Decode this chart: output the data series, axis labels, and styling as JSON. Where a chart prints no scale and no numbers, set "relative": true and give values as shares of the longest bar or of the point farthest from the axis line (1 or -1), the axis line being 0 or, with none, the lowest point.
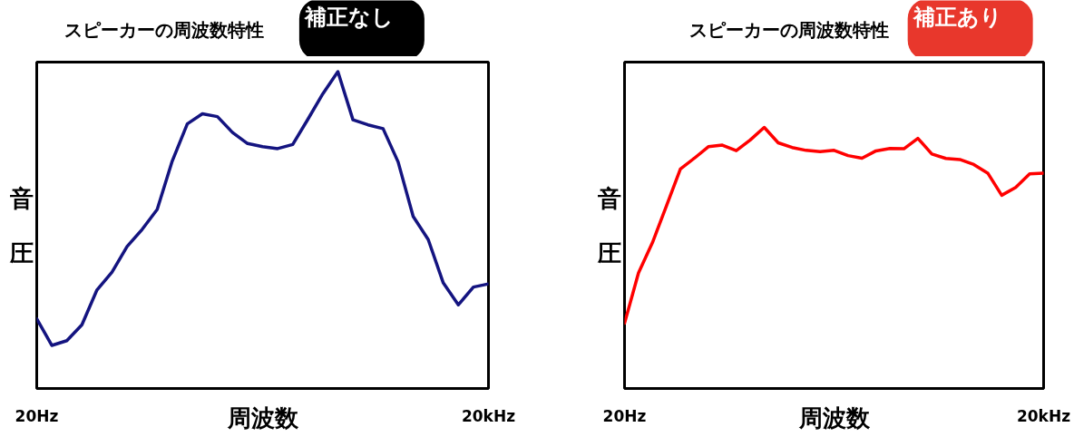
{
  "chart_data": [
    {
      "type": "line",
      "title": "スピーカーの周波数特性",
      "subtitle": "補正なし",
      "xlabel": "周波数",
      "ylabel": "音圧",
      "relative": true,
      "categories": [
        "20Hz",
        null,
        null,
        null,
        null,
        null,
        null,
        null,
        null,
        null,
        null,
        null,
        null,
        null,
        null,
        null,
        null,
        null,
        null,
        null,
        null,
        null,
        null,
        null,
        null,
        null,
        null,
        null,
        null,
        null,
        "20kHz"
      ],
      "series": [
        {
          "color": "#141480",
          "values": [
            0.22,
            0.136,
            0.151,
            0.201,
            0.311,
            0.367,
            0.448,
            0.502,
            0.565,
            0.718,
            0.835,
            0.867,
            0.858,
            0.808,
            0.773,
            0.763,
            0.757,
            0.77,
            0.849,
            0.93,
            1.0,
            0.848,
            0.832,
            0.82,
            0.715,
            0.543,
            0.47,
            0.333,
            0.264,
            0.32,
            0.33
          ]
        }
      ]
    },
    {
      "type": "line",
      "title": "スピーカーの周波数特性",
      "subtitle": "補正あり",
      "xlabel": "周波数",
      "ylabel": "音圧",
      "relative": true,
      "categories": [
        "20Hz",
        null,
        null,
        null,
        null,
        null,
        null,
        null,
        null,
        null,
        null,
        null,
        null,
        null,
        null,
        null,
        null,
        null,
        null,
        null,
        null,
        null,
        null,
        null,
        null,
        null,
        null,
        null,
        null,
        null,
        "20kHz"
      ],
      "series": [
        {
          "color": "#ff0000",
          "values": [
            0.25,
            0.443,
            0.559,
            0.699,
            0.841,
            0.882,
            0.926,
            0.932,
            0.911,
            0.952,
            1.0,
            0.941,
            0.923,
            0.912,
            0.907,
            0.912,
            0.892,
            0.882,
            0.91,
            0.919,
            0.918,
            0.958,
            0.898,
            0.881,
            0.877,
            0.858,
            0.825,
            0.74,
            0.77,
            0.822,
            0.825
          ]
        }
      ]
    }
  ]
}
